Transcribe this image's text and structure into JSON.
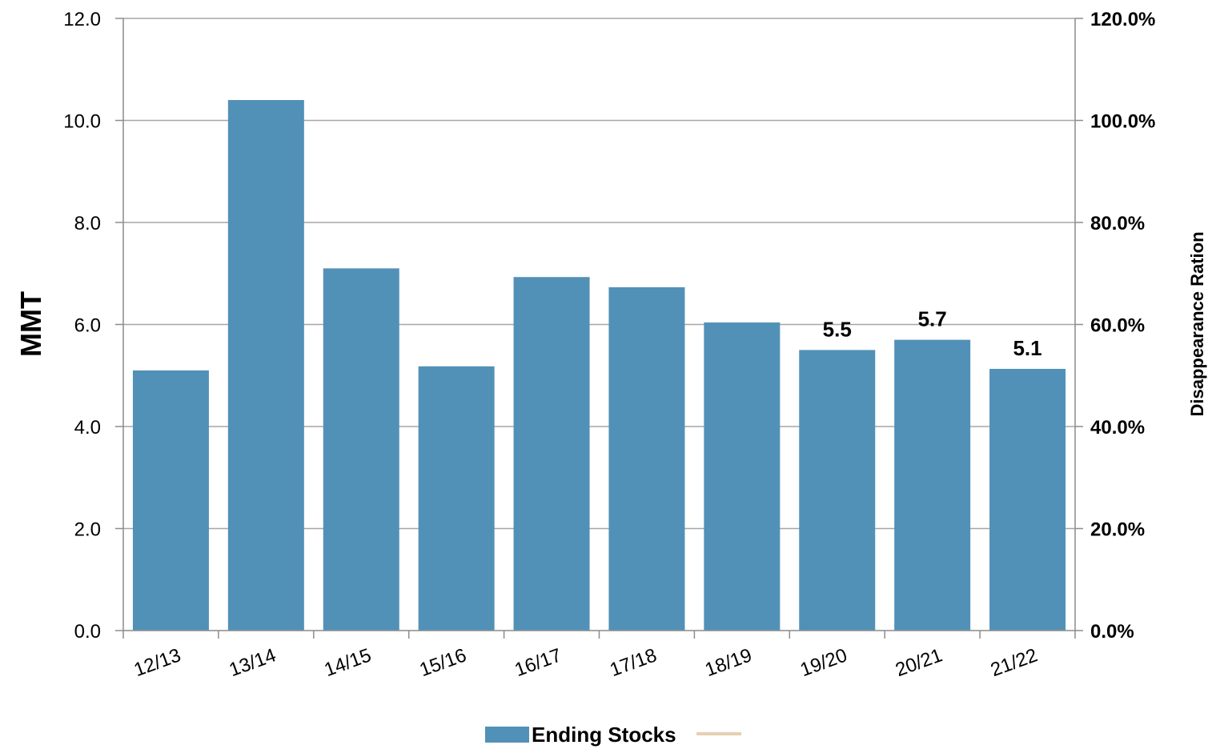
{
  "chart_data": {
    "type": "bar",
    "categories": [
      "12/13",
      "13/14",
      "14/15",
      "15/16",
      "16/17",
      "17/18",
      "18/19",
      "19/20",
      "20/21",
      "21/22"
    ],
    "series": [
      {
        "name": "Ending Stocks",
        "values": [
          5.1,
          10.4,
          7.1,
          5.18,
          6.93,
          6.73,
          6.04,
          5.5,
          5.7,
          5.13
        ],
        "color": "#5291b7"
      }
    ],
    "data_labels": [
      {
        "index": 7,
        "text": "5.5"
      },
      {
        "index": 8,
        "text": "5.7"
      },
      {
        "index": 9,
        "text": "5.1"
      }
    ],
    "ylabel": "MMT",
    "ylim": [
      0,
      12
    ],
    "yticks": [
      "0.0",
      "2.0",
      "4.0",
      "6.0",
      "8.0",
      "10.0",
      "12.0"
    ],
    "y2label": "Disappearance Ration",
    "y2lim": [
      0,
      1.2
    ],
    "y2ticks": [
      "0.0%",
      "20.0%",
      "40.0%",
      "60.0%",
      "80.0%",
      "100.0%",
      "120.0%"
    ],
    "grid": true,
    "legend": {
      "placement": "bottom-center",
      "entries": [
        {
          "label": "Ending Stocks",
          "kind": "bar",
          "color": "#5291b7"
        },
        {
          "label": "",
          "kind": "line",
          "color": "#e8cfb4"
        }
      ]
    }
  }
}
